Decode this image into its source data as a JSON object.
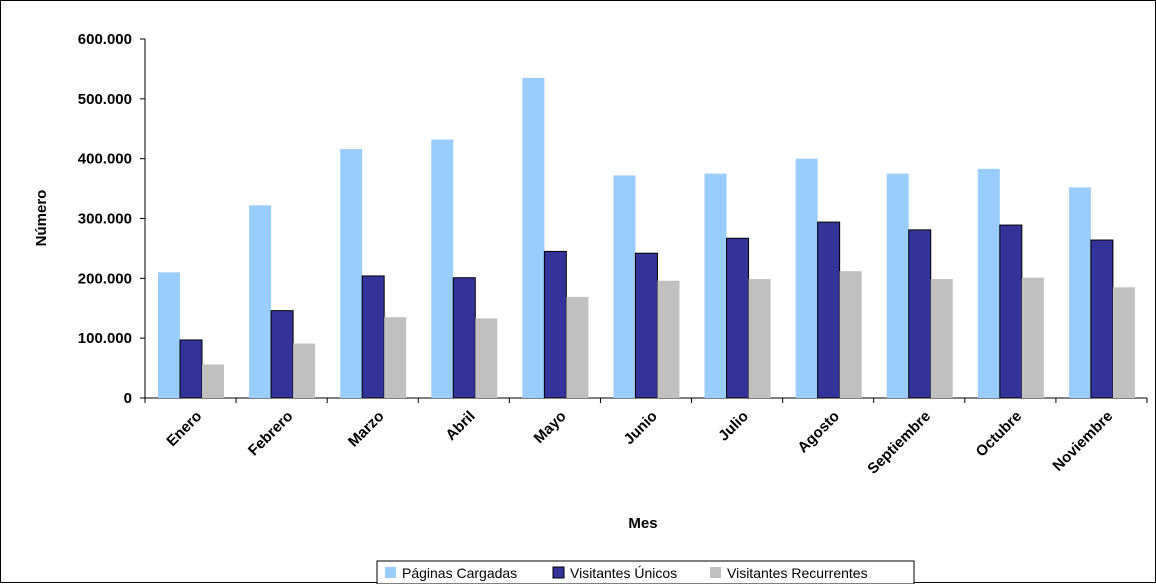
{
  "chart_data": {
    "type": "bar",
    "title": "",
    "xlabel": "Mes",
    "ylabel": "Número",
    "categories": [
      "Enero",
      "Febrero",
      "Marzo",
      "Abril",
      "Mayo",
      "Junio",
      "Julio",
      "Agosto",
      "Septiembre",
      "Octubre",
      "Noviembre"
    ],
    "series": [
      {
        "name": "Páginas Cargadas",
        "color": "#99CCFF",
        "values": [
          210000,
          322000,
          416000,
          432000,
          535000,
          372000,
          375000,
          400000,
          375000,
          383000,
          352000
        ]
      },
      {
        "name": "Visitantes Únicos",
        "color": "#333399",
        "values": [
          97000,
          146000,
          204000,
          201000,
          245000,
          242000,
          267000,
          294000,
          281000,
          289000,
          264000
        ]
      },
      {
        "name": "Visitantes Recurrentes",
        "color": "#C0C0C0",
        "values": [
          56000,
          91000,
          135000,
          133000,
          169000,
          196000,
          199000,
          212000,
          199000,
          201000,
          185000
        ]
      }
    ],
    "yticks": [
      "0",
      "100.000",
      "200.000",
      "300.000",
      "400.000",
      "500.000",
      "600.000"
    ],
    "ylim": [
      0,
      600000
    ],
    "grid": false,
    "legend_position": "bottom"
  }
}
